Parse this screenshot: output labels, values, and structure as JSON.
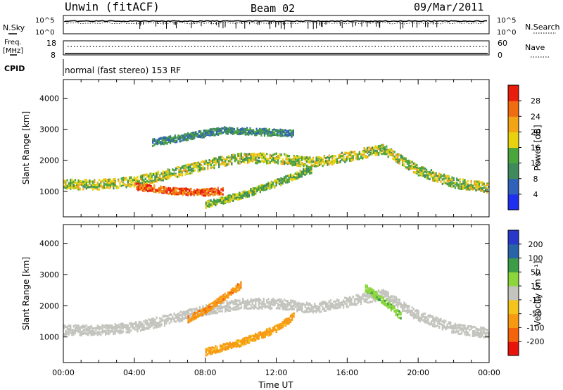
{
  "header": {
    "station": "Unwin (fitACF)",
    "beam": "Beam 02",
    "date": "09/Mar/2011"
  },
  "noise_panel": {
    "left_label": "N.Sky",
    "left_ticks": [
      "10^5",
      "10^0"
    ],
    "right_ticks": [
      "10^5",
      "10^0"
    ],
    "right_label": "N.Search"
  },
  "freq_panel": {
    "left_label_1": "Freq.",
    "left_label_2": "[MHz]",
    "left_ticks": [
      "18",
      "8"
    ],
    "right_ticks": [
      "60",
      "0"
    ],
    "right_label": "Nave"
  },
  "cpid_panel": {
    "label": "CPID",
    "program": "normal (fast stereo) 153 RF"
  },
  "colors": {
    "power": [
      "#1f2ff0",
      "#2f62b8",
      "#3f8a5a",
      "#4aa53c",
      "#e8d20e",
      "#f2a316",
      "#ef6d10",
      "#e81d0c"
    ],
    "velocity": [
      "#e8140c",
      "#f4620c",
      "#f79a12",
      "#f5c41c",
      "#c4c4be",
      "#8cd63c",
      "#3c9c48",
      "#2a64a8",
      "#2838c8"
    ]
  },
  "chart_data": [
    {
      "type": "heatmap",
      "title": "Power",
      "xlabel": "",
      "ylabel": "Slant Range [km]",
      "x_ticks": [
        "00:00",
        "04:00",
        "08:00",
        "12:00",
        "16:00",
        "20:00",
        "00:00"
      ],
      "y_ticks": [
        "1000",
        "2000",
        "3000",
        "4000"
      ],
      "ylim": [
        180,
        4600
      ],
      "colorbar": {
        "label": "Power [dB]",
        "ticks": [
          "4",
          "8",
          "12",
          "16",
          "20",
          "24",
          "28"
        ],
        "range": [
          0,
          32
        ]
      },
      "features": [
        {
          "name": "main echo band",
          "x_hours": [
            0,
            2,
            4,
            6,
            8,
            10,
            12,
            14,
            16,
            18,
            20,
            22,
            24
          ],
          "range_km": [
            1250,
            1250,
            1350,
            1600,
            1900,
            2100,
            2100,
            1950,
            2150,
            2400,
            1700,
            1300,
            1150
          ],
          "power_db": 16
        },
        {
          "name": "strong near-range echo",
          "x_hours": [
            4,
            6,
            8,
            9
          ],
          "range_km": [
            1200,
            1050,
            1000,
            1050
          ],
          "power_db": 27
        },
        {
          "name": "rising oblique band",
          "x_hours": [
            8,
            10,
            12,
            14
          ],
          "range_km": [
            600,
            900,
            1300,
            1750
          ],
          "power_db": 14
        },
        {
          "name": "upper scatter",
          "x_hours": [
            5,
            9,
            13
          ],
          "range_km": [
            2600,
            3000,
            2900
          ],
          "power_db": 10
        }
      ]
    },
    {
      "type": "heatmap",
      "title": "Velocity",
      "xlabel": "Time UT",
      "ylabel": "Slant Range [km]",
      "x_ticks": [
        "00:00",
        "04:00",
        "08:00",
        "12:00",
        "16:00",
        "20:00",
        "00:00"
      ],
      "y_ticks": [
        "1000",
        "2000",
        "3000",
        "4000"
      ],
      "ylim": [
        180,
        4600
      ],
      "colorbar": {
        "label": "Velocity [m s⁻¹]",
        "ticks": [
          "200",
          "100",
          "50",
          "15",
          "-15",
          "-50",
          "-100",
          "-200"
        ],
        "range": [
          -250,
          250
        ]
      },
      "features": [
        {
          "name": "ground scatter band",
          "x_hours": [
            0,
            2,
            4,
            6,
            8,
            10,
            12,
            14,
            16,
            18,
            20,
            22,
            24
          ],
          "range_km": [
            1250,
            1250,
            1350,
            1600,
            1900,
            2100,
            2100,
            1950,
            2150,
            2400,
            1700,
            1300,
            1150
          ],
          "velocity_ms": 0
        },
        {
          "name": "negative streak upper",
          "x_hours": [
            7,
            8,
            9,
            10
          ],
          "range_km": [
            1600,
            1900,
            2300,
            2700
          ],
          "velocity_ms": -90
        },
        {
          "name": "negative streak lower",
          "x_hours": [
            8,
            10,
            12,
            13
          ],
          "range_km": [
            550,
            850,
            1300,
            1700
          ],
          "velocity_ms": -60
        },
        {
          "name": "positive echoes",
          "x_hours": [
            17,
            18,
            19
          ],
          "range_km": [
            2600,
            2200,
            1700
          ],
          "velocity_ms": 40
        }
      ]
    }
  ],
  "x_axis_label": "Time UT"
}
